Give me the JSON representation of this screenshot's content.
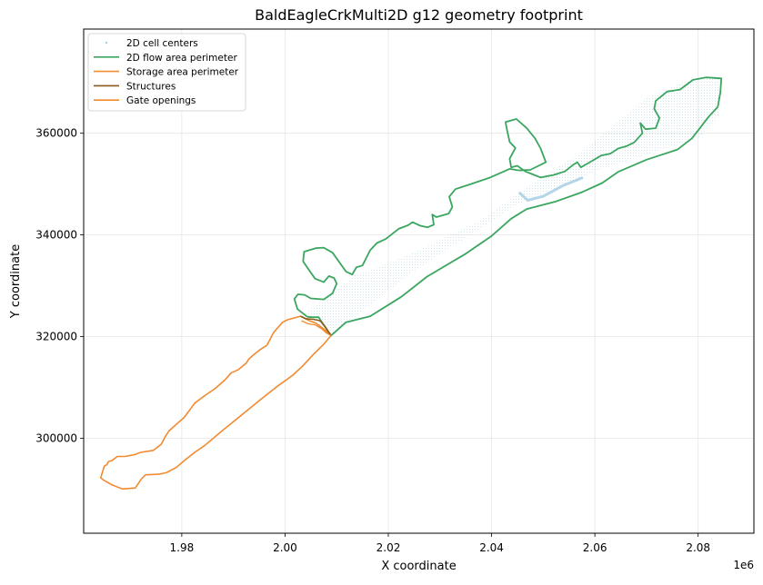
{
  "chart_data": {
    "type": "line",
    "title": "BaldEagleCrkMulti2D g12 geometry footprint",
    "xlabel": "X coordinate",
    "ylabel": "Y coordinate",
    "x_offset_label": "1e6",
    "xlim": [
      1.961,
      2.0908
    ],
    "ylim": [
      281300,
      380500
    ],
    "xticks": [
      1.98,
      2.0,
      2.02,
      2.04,
      2.06,
      2.08
    ],
    "xtick_labels": [
      "1.98",
      "2.00",
      "2.02",
      "2.04",
      "2.06",
      "2.08"
    ],
    "yticks": [
      300000,
      320000,
      340000,
      360000
    ],
    "ytick_labels": [
      "300000",
      "320000",
      "340000",
      "360000"
    ],
    "grid": true,
    "legend_position": "upper-left",
    "colors": {
      "cells": "#a6cee3",
      "flow_area": "#3aa65f",
      "storage_area": "#f28a30",
      "structures": "#8b5a1a",
      "gates": "#f28a30"
    },
    "series": [
      {
        "name": "2D cell centers",
        "type": "scatter-grid",
        "hull": [
          [
            2.0089,
            320200
          ],
          [
            2.0245,
            332500
          ],
          [
            2.045,
            346000
          ],
          [
            2.0614,
            353000
          ],
          [
            2.08,
            359000
          ],
          [
            2.0842,
            363500
          ],
          [
            2.0845,
            370800
          ],
          [
            2.078,
            370500
          ],
          [
            2.07,
            367000
          ],
          [
            2.057,
            356000
          ],
          [
            2.048,
            350200
          ],
          [
            2.038,
            343000
          ],
          [
            2.025,
            336500
          ],
          [
            2.0135,
            332000
          ],
          [
            2.0072,
            327000
          ],
          [
            2.0035,
            324500
          ]
        ],
        "dense_segment": [
          [
            2.0455,
            348200
          ],
          [
            2.047,
            346800
          ],
          [
            2.05,
            347600
          ],
          [
            2.054,
            349800
          ],
          [
            2.0575,
            351200
          ]
        ]
      },
      {
        "name": "2D flow area perimeter",
        "path": [
          [
            2.0089,
            320200
          ],
          [
            2.0118,
            322800
          ],
          [
            2.0165,
            324000
          ],
          [
            2.0225,
            327800
          ],
          [
            2.0275,
            331800
          ],
          [
            2.035,
            336300
          ],
          [
            2.04,
            339800
          ],
          [
            2.0438,
            343200
          ],
          [
            2.0468,
            345100
          ],
          [
            2.0525,
            346600
          ],
          [
            2.0575,
            348400
          ],
          [
            2.0614,
            350200
          ],
          [
            2.0645,
            352400
          ],
          [
            2.07,
            354800
          ],
          [
            2.076,
            356800
          ],
          [
            2.0788,
            359000
          ],
          [
            2.082,
            363200
          ],
          [
            2.0838,
            365200
          ],
          [
            2.0843,
            368000
          ],
          [
            2.0845,
            370800
          ],
          [
            2.0815,
            371000
          ],
          [
            2.079,
            370500
          ],
          [
            2.0765,
            368600
          ],
          [
            2.074,
            368200
          ],
          [
            2.0718,
            366400
          ],
          [
            2.0715,
            364800
          ],
          [
            2.0725,
            363000
          ],
          [
            2.0718,
            361000
          ],
          [
            2.0698,
            360800
          ],
          [
            2.0688,
            362000
          ],
          [
            2.0692,
            360000
          ],
          [
            2.0676,
            358200
          ],
          [
            2.0662,
            357500
          ],
          [
            2.0645,
            357000
          ],
          [
            2.063,
            356000
          ],
          [
            2.0612,
            355600
          ],
          [
            2.0592,
            354400
          ],
          [
            2.058,
            353700
          ],
          [
            2.0573,
            353300
          ],
          [
            2.0566,
            354300
          ],
          [
            2.0558,
            353800
          ],
          [
            2.0542,
            352500
          ],
          [
            2.052,
            351800
          ],
          [
            2.0495,
            351300
          ],
          [
            2.048,
            351900
          ],
          [
            2.0465,
            352500
          ],
          [
            2.045,
            353600
          ],
          [
            2.0438,
            353300
          ],
          [
            2.0435,
            355000
          ],
          [
            2.0446,
            357100
          ],
          [
            2.0435,
            358300
          ],
          [
            2.043,
            360600
          ],
          [
            2.0427,
            362200
          ],
          [
            2.0448,
            362800
          ],
          [
            2.0468,
            361000
          ],
          [
            2.0484,
            359000
          ],
          [
            2.0495,
            357000
          ],
          [
            2.0505,
            354300
          ],
          [
            2.0475,
            352800
          ],
          [
            2.0452,
            352700
          ],
          [
            2.0435,
            353000
          ],
          [
            2.0395,
            351200
          ],
          [
            2.036,
            350000
          ],
          [
            2.033,
            349000
          ],
          [
            2.0318,
            347500
          ],
          [
            2.0324,
            345500
          ],
          [
            2.0317,
            344200
          ],
          [
            2.0293,
            343500
          ],
          [
            2.0285,
            344000
          ],
          [
            2.0288,
            342000
          ],
          [
            2.0276,
            341500
          ],
          [
            2.0262,
            341800
          ],
          [
            2.0247,
            342500
          ],
          [
            2.0238,
            341900
          ],
          [
            2.022,
            341200
          ],
          [
            2.0195,
            339200
          ],
          [
            2.0178,
            338400
          ],
          [
            2.0165,
            337000
          ],
          [
            2.015,
            334000
          ],
          [
            2.0138,
            333600
          ],
          [
            2.013,
            332200
          ],
          [
            2.0118,
            332800
          ],
          [
            2.0092,
            336500
          ],
          [
            2.0075,
            337500
          ],
          [
            2.006,
            337400
          ],
          [
            2.0037,
            336700
          ],
          [
            2.0035,
            334800
          ],
          [
            2.0045,
            333300
          ],
          [
            2.0058,
            331400
          ],
          [
            2.0075,
            330700
          ],
          [
            2.0085,
            331900
          ],
          [
            2.0095,
            331500
          ],
          [
            2.01,
            330400
          ],
          [
            2.0092,
            328500
          ],
          [
            2.0075,
            327300
          ],
          [
            2.005,
            327500
          ],
          [
            2.0038,
            328200
          ],
          [
            2.0025,
            328300
          ],
          [
            2.0018,
            327400
          ],
          [
            2.0024,
            325400
          ],
          [
            2.0034,
            324600
          ],
          [
            2.0043,
            323900
          ],
          [
            2.0052,
            323800
          ],
          [
            2.0065,
            323800
          ],
          [
            2.0079,
            321700
          ],
          [
            2.0089,
            320200
          ]
        ]
      },
      {
        "name": "Storage area perimeter",
        "path": [
          [
            2.0089,
            320200
          ],
          [
            2.0075,
            321500
          ],
          [
            2.006,
            322600
          ],
          [
            2.0045,
            323200
          ],
          [
            2.003,
            324000
          ],
          [
            2.0005,
            323300
          ],
          [
            1.9995,
            322800
          ],
          [
            1.9978,
            320800
          ],
          [
            1.9965,
            318300
          ],
          [
            1.995,
            317300
          ],
          [
            1.994,
            316500
          ],
          [
            1.993,
            315600
          ],
          [
            1.9925,
            314800
          ],
          [
            1.991,
            313500
          ],
          [
            1.9895,
            312800
          ],
          [
            1.9885,
            311600
          ],
          [
            1.9865,
            309800
          ],
          [
            1.9845,
            308400
          ],
          [
            1.9825,
            306900
          ],
          [
            1.9805,
            304100
          ],
          [
            1.9788,
            302600
          ],
          [
            1.9775,
            301400
          ],
          [
            1.9768,
            300300
          ],
          [
            1.976,
            298800
          ],
          [
            1.9745,
            297600
          ],
          [
            1.972,
            297200
          ],
          [
            1.971,
            296800
          ],
          [
            1.969,
            296400
          ],
          [
            1.9675,
            296400
          ],
          [
            1.9665,
            295600
          ],
          [
            1.9658,
            295400
          ],
          [
            1.9655,
            294800
          ],
          [
            1.965,
            294500
          ],
          [
            1.9643,
            292200
          ],
          [
            1.9648,
            291800
          ],
          [
            1.9665,
            290800
          ],
          [
            1.9685,
            290000
          ],
          [
            1.971,
            290200
          ],
          [
            1.9722,
            292000
          ],
          [
            1.973,
            292800
          ],
          [
            1.9755,
            292900
          ],
          [
            1.977,
            293200
          ],
          [
            1.979,
            294300
          ],
          [
            1.9805,
            295600
          ],
          [
            1.9825,
            297200
          ],
          [
            1.9845,
            298600
          ],
          [
            1.988,
            301600
          ],
          [
            1.9915,
            304500
          ],
          [
            1.995,
            307400
          ],
          [
            1.9985,
            310200
          ],
          [
            2.0015,
            312400
          ],
          [
            2.0035,
            314300
          ],
          [
            2.0055,
            316500
          ],
          [
            2.0075,
            318500
          ],
          [
            2.0089,
            320200
          ]
        ]
      },
      {
        "name": "Structures",
        "path": [
          [
            2.003,
            324000
          ],
          [
            2.004,
            323500
          ],
          [
            2.0055,
            323400
          ],
          [
            2.0068,
            323100
          ],
          [
            2.0078,
            321900
          ],
          [
            2.0089,
            320200
          ]
        ]
      },
      {
        "name": "Gate openings",
        "path": [
          [
            2.0032,
            323100
          ],
          [
            2.0045,
            322500
          ],
          [
            2.0058,
            322300
          ],
          [
            2.007,
            321600
          ],
          [
            2.008,
            320700
          ],
          [
            2.0089,
            320200
          ]
        ]
      }
    ]
  }
}
